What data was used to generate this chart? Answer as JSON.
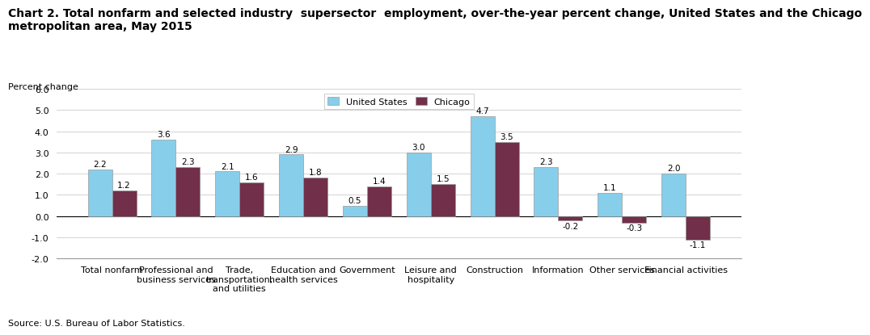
{
  "title_line1": "Chart 2. Total nonfarm and selected industry  supersector  employment, over-the-year percent change, United States and the Chicago",
  "title_line2": "metropolitan area, May 2015",
  "ylabel": "Percent change",
  "source": "Source: U.S. Bureau of Labor Statistics.",
  "categories": [
    "Total nonfarm",
    "Professional and\nbusiness services",
    "Trade,\ntransportation,\nand utilities",
    "Education and\nhealth services",
    "Government",
    "Leisure and\nhospitality",
    "Construction",
    "Information",
    "Other services",
    "Financial activities"
  ],
  "us_values": [
    2.2,
    3.6,
    2.1,
    2.9,
    0.5,
    3.0,
    4.7,
    2.3,
    1.1,
    2.0
  ],
  "chicago_values": [
    1.2,
    2.3,
    1.6,
    1.8,
    1.4,
    1.5,
    3.5,
    -0.2,
    -0.3,
    -1.1
  ],
  "us_color": "#87CEEB",
  "chicago_color": "#722F4A",
  "ylim": [
    -2.0,
    6.0
  ],
  "yticks": [
    -2.0,
    -1.0,
    0.0,
    1.0,
    2.0,
    3.0,
    4.0,
    5.0,
    6.0
  ],
  "legend_us": "United States",
  "legend_chicago": "Chicago",
  "bar_width": 0.38,
  "title_fontsize": 10,
  "label_fontsize": 8,
  "tick_fontsize": 8,
  "annotation_fontsize": 7.5
}
